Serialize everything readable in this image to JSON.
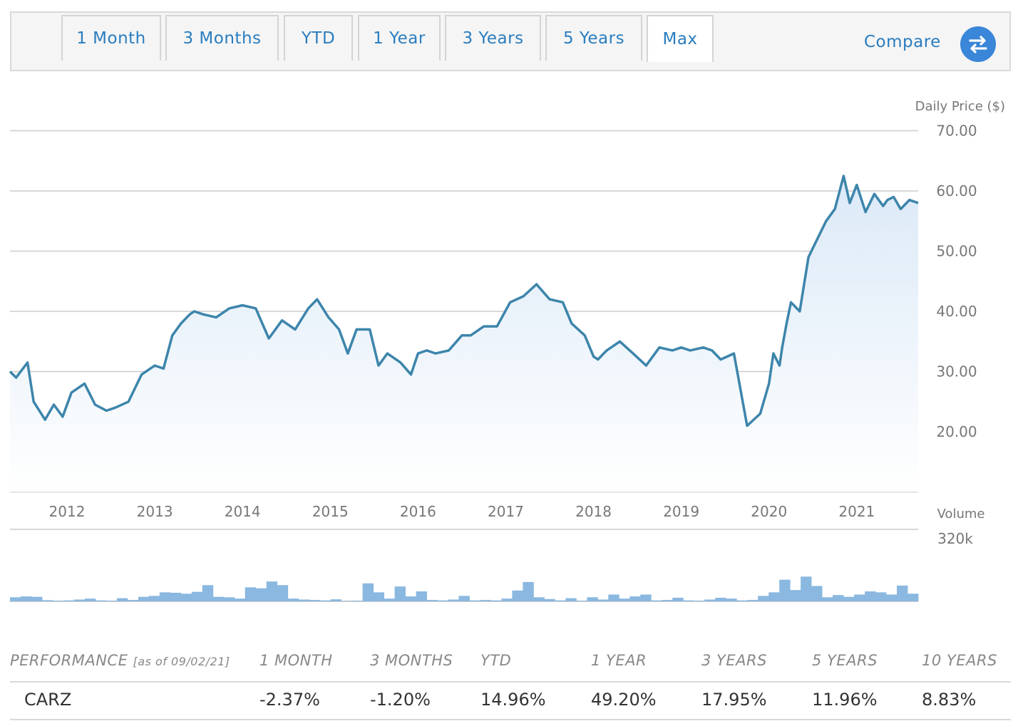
{
  "tabs": [
    {
      "label": "1 Month",
      "active": false
    },
    {
      "label": "3 Months",
      "active": false
    },
    {
      "label": "YTD",
      "active": false
    },
    {
      "label": "1 Year",
      "active": false
    },
    {
      "label": "3 Years",
      "active": false
    },
    {
      "label": "5 Years",
      "active": false
    },
    {
      "label": "Max",
      "active": true
    }
  ],
  "compare": {
    "label": "Compare",
    "icon": "swap-arrows-icon"
  },
  "colors": {
    "line": "#3d85ab",
    "fill_top": "#e1edf9",
    "volume_bar": "#8ab8e0",
    "accent": "#2a7dbf",
    "grid": "#cccccc"
  },
  "chart_data": [
    {
      "type": "line",
      "ylabel": "Daily Price ($)",
      "ylim": [
        10,
        70
      ],
      "yticks": [
        "70.00",
        "60.00",
        "50.00",
        "40.00",
        "30.00",
        "20.00"
      ],
      "x_tick_labels": [
        "2012",
        "2013",
        "2014",
        "2015",
        "2016",
        "2017",
        "2018",
        "2019",
        "2020",
        "2021"
      ],
      "xlim": [
        2011.35,
        2021.7
      ],
      "x": [
        2011.35,
        2011.42,
        2011.55,
        2011.62,
        2011.75,
        2011.85,
        2011.95,
        2012.05,
        2012.2,
        2012.32,
        2012.45,
        2012.55,
        2012.7,
        2012.85,
        2013.0,
        2013.1,
        2013.2,
        2013.3,
        2013.4,
        2013.45,
        2013.55,
        2013.7,
        2013.85,
        2014.0,
        2014.15,
        2014.3,
        2014.45,
        2014.6,
        2014.75,
        2014.85,
        2014.98,
        2015.1,
        2015.2,
        2015.3,
        2015.45,
        2015.55,
        2015.65,
        2015.8,
        2015.92,
        2016.0,
        2016.1,
        2016.2,
        2016.35,
        2016.5,
        2016.6,
        2016.75,
        2016.9,
        2017.05,
        2017.2,
        2017.35,
        2017.5,
        2017.65,
        2017.75,
        2017.9,
        2018.0,
        2018.05,
        2018.15,
        2018.3,
        2018.45,
        2018.6,
        2018.75,
        2018.9,
        2019.0,
        2019.1,
        2019.25,
        2019.35,
        2019.45,
        2019.6,
        2019.75,
        2019.9,
        2020.0,
        2020.05,
        2020.12,
        2020.15,
        2020.2,
        2020.25,
        2020.35,
        2020.45,
        2020.55,
        2020.65,
        2020.75,
        2020.85,
        2020.92,
        2021.0,
        2021.1,
        2021.2,
        2021.3,
        2021.35,
        2021.42,
        2021.5,
        2021.6,
        2021.7
      ],
      "values": [
        30.0,
        29.0,
        31.5,
        25.0,
        22.0,
        24.5,
        22.5,
        26.5,
        28.0,
        24.5,
        23.5,
        24.0,
        25.0,
        29.5,
        31.0,
        30.5,
        36.0,
        38.0,
        39.5,
        40.0,
        39.5,
        39.0,
        40.5,
        41.0,
        40.5,
        35.5,
        38.5,
        37.0,
        40.5,
        42.0,
        39.0,
        37.0,
        33.0,
        37.0,
        37.0,
        31.0,
        33.0,
        31.5,
        29.5,
        33.0,
        33.5,
        33.0,
        33.5,
        36.0,
        36.0,
        37.5,
        37.5,
        41.5,
        42.5,
        44.5,
        42.0,
        41.5,
        38.0,
        36.0,
        32.5,
        32.0,
        33.5,
        35.0,
        33.0,
        31.0,
        34.0,
        33.5,
        34.0,
        33.5,
        34.0,
        33.5,
        32.0,
        33.0,
        21.0,
        23.0,
        28.0,
        33.0,
        31.0,
        34.0,
        38.0,
        41.5,
        40.0,
        49.0,
        52.0,
        55.0,
        57.0,
        62.5,
        58.0,
        61.0,
        56.5,
        59.5,
        57.5,
        58.5,
        59.0,
        57.0,
        58.5,
        58.0
      ]
    },
    {
      "type": "bar",
      "ylabel": "Volume",
      "ytick": "320k",
      "ymax": 320,
      "values": [
        18,
        22,
        20,
        5,
        3,
        4,
        8,
        12,
        4,
        3,
        14,
        6,
        20,
        24,
        40,
        38,
        34,
        42,
        72,
        20,
        18,
        12,
        62,
        58,
        88,
        72,
        12,
        8,
        6,
        4,
        9,
        2,
        3,
        80,
        40,
        12,
        66,
        22,
        44,
        6,
        4,
        8,
        24,
        4,
        6,
        4,
        12,
        48,
        86,
        18,
        10,
        4,
        14,
        3,
        18,
        8,
        30,
        12,
        22,
        30,
        4,
        6,
        16,
        4,
        3,
        8,
        16,
        12,
        4,
        6,
        24,
        40,
        96,
        50,
        110,
        68,
        18,
        28,
        20,
        30,
        44,
        40,
        30,
        70,
        34
      ]
    }
  ],
  "performance": {
    "header_label": "PERFORMANCE",
    "as_of": "[as of 09/02/21]",
    "columns": [
      "1 MONTH",
      "3 MONTHS",
      "YTD",
      "1 YEAR",
      "3 YEARS",
      "5 YEARS",
      "10 YEARS"
    ],
    "ticker": "CARZ",
    "values": [
      "-2.37%",
      "-1.20%",
      "14.96%",
      "49.20%",
      "17.95%",
      "11.96%",
      "8.83%"
    ]
  }
}
